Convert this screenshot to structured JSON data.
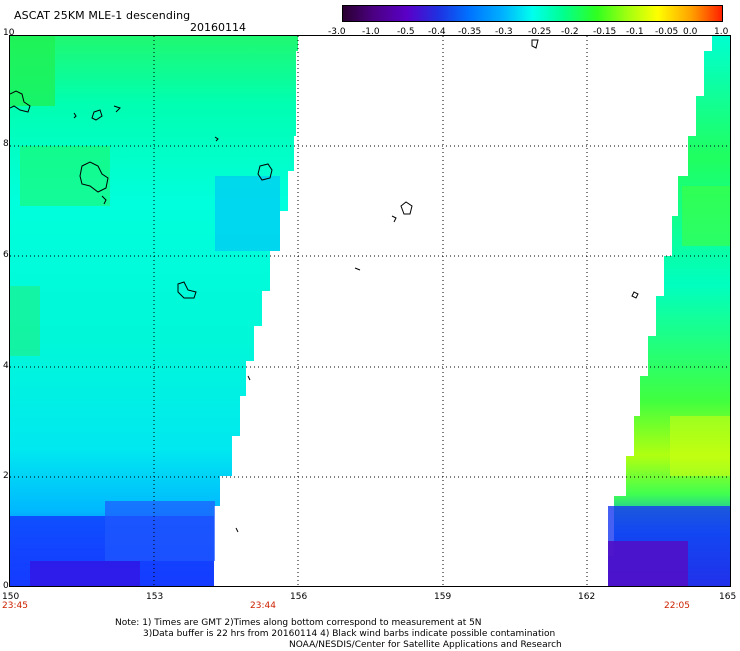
{
  "header": {
    "title": "ASCAT 25KM MLE-1 descending",
    "date": "20160114"
  },
  "colorbar": {
    "labels": [
      "-3.0",
      "-1.0",
      "-0.5",
      "-0.4",
      "-0.35",
      "-0.3",
      "-0.25",
      "-0.2",
      "-0.15",
      "-0.1",
      "-0.05",
      "0.0",
      "1.0"
    ],
    "colors": [
      "#2a0030",
      "#4b0082",
      "#5a00c8",
      "#2030e0",
      "#0070ff",
      "#00b0ff",
      "#00ffee",
      "#00ff90",
      "#30ff20",
      "#a0ff10",
      "#ffff00",
      "#ffa000",
      "#ff2000"
    ]
  },
  "axes": {
    "y_labels": [
      "10",
      "8",
      "6",
      "4",
      "2",
      "0"
    ],
    "x_labels": [
      "150",
      "153",
      "156",
      "159",
      "162",
      "165"
    ],
    "time_labels": [
      "23:45",
      "23:44",
      "22:05"
    ]
  },
  "footer": {
    "line1": "Note: 1) Times are GMT 2)Times along bottom correspond to measurement at 5N",
    "line2": "3)Data buffer is 22 hrs from 20160114 4) Black wind barbs indicate possible contamination",
    "line3": "NOAA/NESDIS/Center for Satellite Applications and Research"
  },
  "palette": {
    "cyan": "#00ffe0",
    "teal": "#00f0c8",
    "green": "#10f860",
    "lime": "#a0ff20",
    "blue_light": "#00b8ff",
    "blue": "#2040ff",
    "indigo": "#4020e0",
    "purple": "#5a10c0"
  }
}
